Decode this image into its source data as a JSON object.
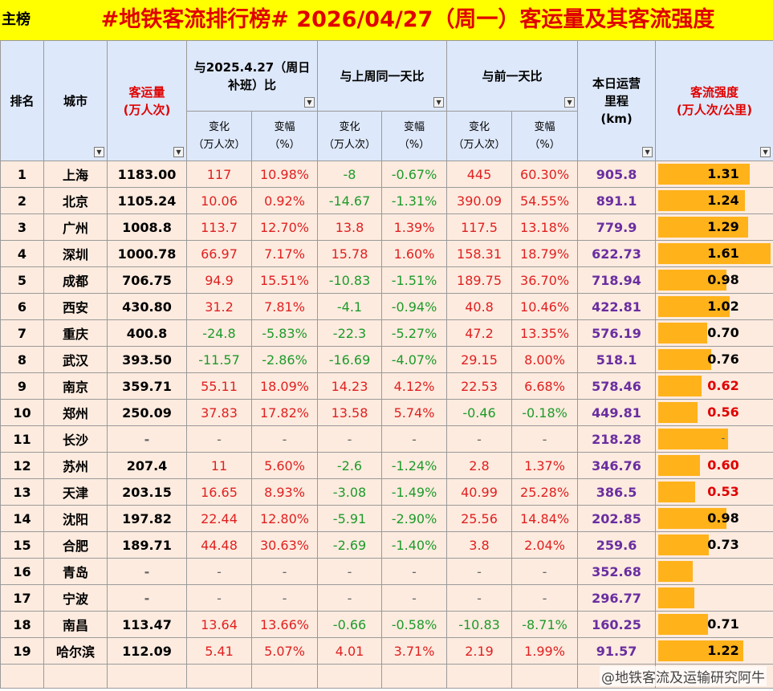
{
  "title": {
    "tag": "主榜",
    "text": "#地铁客流排行榜# 2026/04/27（周一）客运量及其客流强度"
  },
  "headers": {
    "rank": "排名",
    "city": "城市",
    "volume_line1": "客运量",
    "volume_line2": "(万人次)",
    "yoy_line1": "与2025.4.27（周日",
    "yoy_line2": "补班）比",
    "wow": "与上周同一天比",
    "dod": "与前一天比",
    "mileage_line1": "本日运营",
    "mileage_line2": "里程",
    "mileage_line3": "(km)",
    "intensity_line1": "客流强度",
    "intensity_line2": "(万人次/公里)",
    "change_line1": "变化",
    "change_line2": "（万人次）",
    "pct_line1": "变幅",
    "pct_line2": "（%）",
    "filter_glyph": "▼"
  },
  "rows": [
    {
      "rank": "1",
      "city": "上海",
      "volume": "1183.00",
      "yoy_chg": "117",
      "yoy_pct": "10.98%",
      "wow_chg": "-8",
      "wow_pct": "-0.67%",
      "dod_chg": "445",
      "dod_pct": "60.30%",
      "mileage": "905.8",
      "intensity": "1.31",
      "bar": 1.31,
      "style": [
        "red",
        "red",
        "green",
        "green",
        "red",
        "red",
        "black"
      ]
    },
    {
      "rank": "2",
      "city": "北京",
      "volume": "1105.24",
      "yoy_chg": "10.06",
      "yoy_pct": "0.92%",
      "wow_chg": "-14.67",
      "wow_pct": "-1.31%",
      "dod_chg": "390.09",
      "dod_pct": "54.55%",
      "mileage": "891.1",
      "intensity": "1.24",
      "bar": 1.24,
      "style": [
        "red",
        "red",
        "green",
        "green",
        "red",
        "red",
        "black"
      ]
    },
    {
      "rank": "3",
      "city": "广州",
      "volume": "1008.8",
      "yoy_chg": "113.7",
      "yoy_pct": "12.70%",
      "wow_chg": "13.8",
      "wow_pct": "1.39%",
      "dod_chg": "117.5",
      "dod_pct": "13.18%",
      "mileage": "779.9",
      "intensity": "1.29",
      "bar": 1.29,
      "style": [
        "red",
        "red",
        "red",
        "red",
        "red",
        "red",
        "black"
      ]
    },
    {
      "rank": "4",
      "city": "深圳",
      "volume": "1000.78",
      "yoy_chg": "66.97",
      "yoy_pct": "7.17%",
      "wow_chg": "15.78",
      "wow_pct": "1.60%",
      "dod_chg": "158.31",
      "dod_pct": "18.79%",
      "mileage": "622.73",
      "intensity": "1.61",
      "bar": 1.61,
      "style": [
        "red",
        "red",
        "red",
        "red",
        "red",
        "red",
        "black"
      ]
    },
    {
      "rank": "5",
      "city": "成都",
      "volume": "706.75",
      "yoy_chg": "94.9",
      "yoy_pct": "15.51%",
      "wow_chg": "-10.83",
      "wow_pct": "-1.51%",
      "dod_chg": "189.75",
      "dod_pct": "36.70%",
      "mileage": "718.94",
      "intensity": "0.98",
      "bar": 0.98,
      "style": [
        "red",
        "red",
        "green",
        "green",
        "red",
        "red",
        "black"
      ]
    },
    {
      "rank": "6",
      "city": "西安",
      "volume": "430.80",
      "yoy_chg": "31.2",
      "yoy_pct": "7.81%",
      "wow_chg": "-4.1",
      "wow_pct": "-0.94%",
      "dod_chg": "40.8",
      "dod_pct": "10.46%",
      "mileage": "422.81",
      "intensity": "1.02",
      "bar": 1.02,
      "style": [
        "red",
        "red",
        "green",
        "green",
        "red",
        "red",
        "black"
      ]
    },
    {
      "rank": "7",
      "city": "重庆",
      "volume": "400.8",
      "yoy_chg": "-24.8",
      "yoy_pct": "-5.83%",
      "wow_chg": "-22.3",
      "wow_pct": "-5.27%",
      "dod_chg": "47.2",
      "dod_pct": "13.35%",
      "mileage": "576.19",
      "intensity": "0.70",
      "bar": 0.7,
      "style": [
        "green",
        "green",
        "green",
        "green",
        "red",
        "red",
        "black"
      ]
    },
    {
      "rank": "8",
      "city": "武汉",
      "volume": "393.50",
      "yoy_chg": "-11.57",
      "yoy_pct": "-2.86%",
      "wow_chg": "-16.69",
      "wow_pct": "-4.07%",
      "dod_chg": "29.15",
      "dod_pct": "8.00%",
      "mileage": "518.1",
      "intensity": "0.76",
      "bar": 0.76,
      "style": [
        "green",
        "green",
        "green",
        "green",
        "red",
        "red",
        "black"
      ]
    },
    {
      "rank": "9",
      "city": "南京",
      "volume": "359.71",
      "yoy_chg": "55.11",
      "yoy_pct": "18.09%",
      "wow_chg": "14.23",
      "wow_pct": "4.12%",
      "dod_chg": "22.53",
      "dod_pct": "6.68%",
      "mileage": "578.46",
      "intensity": "0.62",
      "bar": 0.62,
      "style": [
        "red",
        "red",
        "red",
        "red",
        "red",
        "red",
        "redv"
      ]
    },
    {
      "rank": "10",
      "city": "郑州",
      "volume": "250.09",
      "yoy_chg": "37.83",
      "yoy_pct": "17.82%",
      "wow_chg": "13.58",
      "wow_pct": "5.74%",
      "dod_chg": "-0.46",
      "dod_pct": "-0.18%",
      "mileage": "449.81",
      "intensity": "0.56",
      "bar": 0.56,
      "style": [
        "red",
        "red",
        "red",
        "red",
        "green",
        "green",
        "redv"
      ]
    },
    {
      "rank": "11",
      "city": "长沙",
      "volume": "-",
      "yoy_chg": "-",
      "yoy_pct": "-",
      "wow_chg": "-",
      "wow_pct": "-",
      "dod_chg": "-",
      "dod_pct": "-",
      "mileage": "218.28",
      "intensity": "-",
      "bar": 1.0,
      "style": [
        "dash",
        "dash",
        "dash",
        "dash",
        "dash",
        "dash",
        "dash"
      ]
    },
    {
      "rank": "12",
      "city": "苏州",
      "volume": "207.4",
      "yoy_chg": "11",
      "yoy_pct": "5.60%",
      "wow_chg": "-2.6",
      "wow_pct": "-1.24%",
      "dod_chg": "2.8",
      "dod_pct": "1.37%",
      "mileage": "346.76",
      "intensity": "0.60",
      "bar": 0.6,
      "style": [
        "red",
        "red",
        "green",
        "green",
        "red",
        "red",
        "redv"
      ]
    },
    {
      "rank": "13",
      "city": "天津",
      "volume": "203.15",
      "yoy_chg": "16.65",
      "yoy_pct": "8.93%",
      "wow_chg": "-3.08",
      "wow_pct": "-1.49%",
      "dod_chg": "40.99",
      "dod_pct": "25.28%",
      "mileage": "386.5",
      "intensity": "0.53",
      "bar": 0.53,
      "style": [
        "red",
        "red",
        "green",
        "green",
        "red",
        "red",
        "redv"
      ]
    },
    {
      "rank": "14",
      "city": "沈阳",
      "volume": "197.82",
      "yoy_chg": "22.44",
      "yoy_pct": "12.80%",
      "wow_chg": "-5.91",
      "wow_pct": "-2.90%",
      "dod_chg": "25.56",
      "dod_pct": "14.84%",
      "mileage": "202.85",
      "intensity": "0.98",
      "bar": 0.98,
      "style": [
        "red",
        "red",
        "green",
        "green",
        "red",
        "red",
        "black"
      ]
    },
    {
      "rank": "15",
      "city": "合肥",
      "volume": "189.71",
      "yoy_chg": "44.48",
      "yoy_pct": "30.63%",
      "wow_chg": "-2.69",
      "wow_pct": "-1.40%",
      "dod_chg": "3.8",
      "dod_pct": "2.04%",
      "mileage": "259.6",
      "intensity": "0.73",
      "bar": 0.73,
      "style": [
        "red",
        "red",
        "green",
        "green",
        "red",
        "red",
        "black"
      ]
    },
    {
      "rank": "16",
      "city": "青岛",
      "volume": "-",
      "yoy_chg": "-",
      "yoy_pct": "-",
      "wow_chg": "-",
      "wow_pct": "-",
      "dod_chg": "-",
      "dod_pct": "-",
      "mileage": "352.68",
      "intensity": "",
      "bar": 0.5,
      "style": [
        "dash",
        "dash",
        "dash",
        "dash",
        "dash",
        "dash",
        "dash"
      ]
    },
    {
      "rank": "17",
      "city": "宁波",
      "volume": "-",
      "yoy_chg": "-",
      "yoy_pct": "-",
      "wow_chg": "-",
      "wow_pct": "-",
      "dod_chg": "-",
      "dod_pct": "-",
      "mileage": "296.77",
      "intensity": "",
      "bar": 0.52,
      "style": [
        "dash",
        "dash",
        "dash",
        "dash",
        "dash",
        "dash",
        "dash"
      ]
    },
    {
      "rank": "18",
      "city": "南昌",
      "volume": "113.47",
      "yoy_chg": "13.64",
      "yoy_pct": "13.66%",
      "wow_chg": "-0.66",
      "wow_pct": "-0.58%",
      "dod_chg": "-10.83",
      "dod_pct": "-8.71%",
      "mileage": "160.25",
      "intensity": "0.71",
      "bar": 0.71,
      "style": [
        "red",
        "red",
        "green",
        "green",
        "green",
        "green",
        "black"
      ]
    },
    {
      "rank": "19",
      "city": "哈尔滨",
      "volume": "112.09",
      "yoy_chg": "5.41",
      "yoy_pct": "5.07%",
      "wow_chg": "4.01",
      "wow_pct": "3.71%",
      "dod_chg": "2.19",
      "dod_pct": "1.99%",
      "mileage": "91.57",
      "intensity": "1.22",
      "bar": 1.22,
      "style": [
        "red",
        "red",
        "red",
        "red",
        "red",
        "red",
        "black"
      ]
    }
  ],
  "bar_max": 1.61,
  "colors": {
    "bar": "#ffb21a",
    "header_bg": "#dde8fa",
    "row_bg": "#fdebdf",
    "title_bg": "#ffff00"
  },
  "watermark": "@地铁客流及运输研究阿牛"
}
